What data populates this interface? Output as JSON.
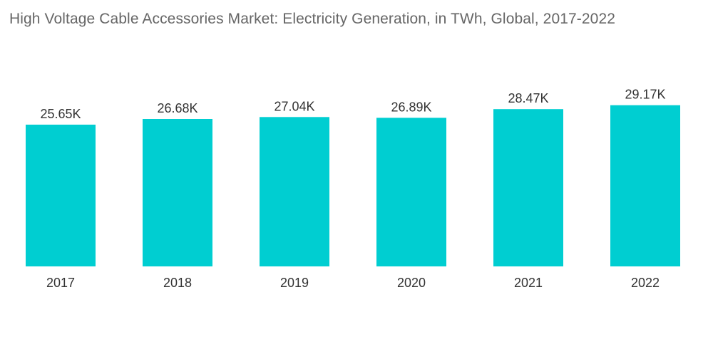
{
  "chart_data": {
    "type": "bar",
    "title": "High Voltage Cable Accessories Market: Electricity Generation, in TWh, Global, 2017-2022",
    "xlabel": "",
    "ylabel": "",
    "unit": "TWh",
    "categories": [
      "2017",
      "2018",
      "2019",
      "2020",
      "2021",
      "2022"
    ],
    "values": [
      25650,
      26680,
      27040,
      26890,
      28470,
      29170
    ],
    "value_labels": [
      "25.65K",
      "26.68K",
      "27.04K",
      "26.89K",
      "28.47K",
      "29.17K"
    ],
    "ylim": [
      0,
      30000
    ],
    "grid": false,
    "legend": "none",
    "bar_color": "#00CED1"
  }
}
